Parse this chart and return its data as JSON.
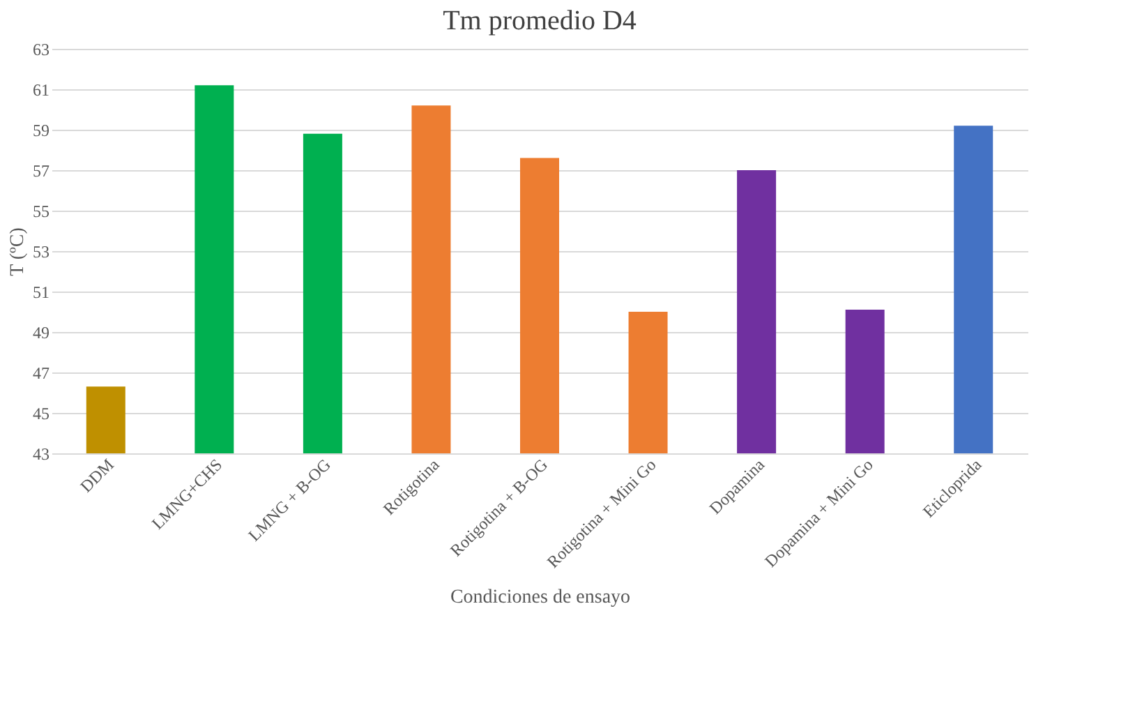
{
  "chart_data": {
    "type": "bar",
    "title": "Tm promedio D4",
    "xlabel": "Condiciones de ensayo",
    "ylabel": "T (ºC)",
    "categories": [
      "DDM",
      "LMNG+CHS",
      "LMNG + B-OG",
      "Rotigotina",
      "Rotigotina + B-OG",
      "Rotigotina + Mini Go",
      "Dopamina",
      "Dopamina + Mini Go",
      "Eticloprida"
    ],
    "values": [
      46.3,
      61.2,
      58.8,
      60.2,
      57.6,
      50.0,
      57.0,
      50.1,
      59.2
    ],
    "colors": [
      "#bf9000",
      "#00b050",
      "#00b050",
      "#ed7d31",
      "#ed7d31",
      "#ed7d31",
      "#7030a0",
      "#7030a0",
      "#4472c4"
    ],
    "ylim": [
      43,
      63
    ],
    "yticks": [
      43,
      45,
      47,
      49,
      51,
      53,
      55,
      57,
      59,
      61,
      63
    ],
    "grid": "y"
  }
}
